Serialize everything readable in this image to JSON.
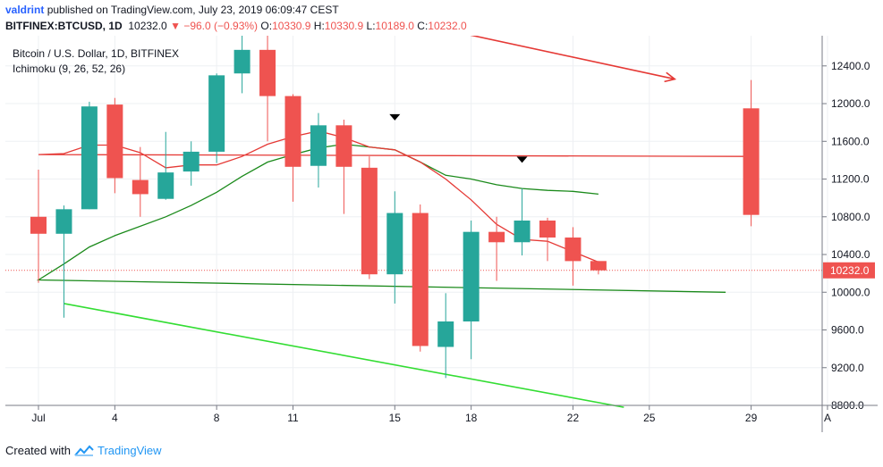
{
  "header": {
    "user": "valdrint",
    "published": "published on TradingView.com, July 23, 2019 06:09:47 CEST",
    "symbol": "BITFINEX:BTCUSD, 1D",
    "last": "10232.0",
    "change": "−96.0 (−0.93%)",
    "o_label": "O:",
    "o_val": "10330.9",
    "h_label": "H:",
    "h_val": "10330.9",
    "l_label": "L:",
    "l_val": "10189.0",
    "c_label": "C:",
    "c_val": "10232.0"
  },
  "footer": {
    "created_with": "Created with",
    "brand": "TradingView"
  },
  "colors": {
    "up": "#26a69a",
    "down": "#ef5350",
    "conversion": "#e53935",
    "base": "#1b8a1b",
    "resistance": "#e53935",
    "support": "#33dd33",
    "grid": "#eef0f3",
    "axis": "#787b86",
    "price_line": "#ef5350",
    "marker": "#000000"
  },
  "chart_data": {
    "type": "candlestick",
    "title": "Bitcoin / U.S. Dollar, 1D, BITFINEX",
    "indicator": "Ichimoku (9, 26, 52, 26)",
    "x_ticks": [
      "Jul",
      "4",
      "8",
      "11",
      "15",
      "18",
      "22",
      "25",
      "29",
      "A"
    ],
    "y_ticks": [
      "12400.0",
      "12000.0",
      "11600.0",
      "11200.0",
      "10800.0",
      "10400.0",
      "10000.0",
      "9600.0",
      "9200.0",
      "8800.0"
    ],
    "ylim": [
      8800,
      12720
    ],
    "last_price_label": "10232.0",
    "last_price": 10232,
    "candles": [
      {
        "d": "Jun 30",
        "o": 11950,
        "h": 12250,
        "l": 10700,
        "c": 10820
      },
      {
        "d": "Jul 1",
        "o": 10800,
        "h": 11300,
        "l": 10100,
        "c": 10620
      },
      {
        "d": "Jul 2",
        "o": 10620,
        "h": 10920,
        "l": 9730,
        "c": 10880
      },
      {
        "d": "Jul 3",
        "o": 10880,
        "h": 12020,
        "l": 10880,
        "c": 11970
      },
      {
        "d": "Jul 4",
        "o": 11990,
        "h": 12060,
        "l": 11050,
        "c": 11210
      },
      {
        "d": "Jul 5",
        "o": 11190,
        "h": 11540,
        "l": 10800,
        "c": 11040
      },
      {
        "d": "Jul 6",
        "o": 10990,
        "h": 11700,
        "l": 10980,
        "c": 11270
      },
      {
        "d": "Jul 7",
        "o": 11280,
        "h": 11600,
        "l": 11130,
        "c": 11490
      },
      {
        "d": "Jul 8",
        "o": 11490,
        "h": 12320,
        "l": 11370,
        "c": 12300
      },
      {
        "d": "Jul 9",
        "o": 12320,
        "h": 12800,
        "l": 12110,
        "c": 12570
      },
      {
        "d": "Jul 10",
        "o": 12570,
        "h": 13200,
        "l": 11600,
        "c": 12080
      },
      {
        "d": "Jul 11",
        "o": 12080,
        "h": 12100,
        "l": 10960,
        "c": 11330
      },
      {
        "d": "Jul 12",
        "o": 11340,
        "h": 11900,
        "l": 11110,
        "c": 11770
      },
      {
        "d": "Jul 13",
        "o": 11770,
        "h": 11830,
        "l": 10830,
        "c": 11330
      },
      {
        "d": "Jul 14",
        "o": 11320,
        "h": 11440,
        "l": 10140,
        "c": 10190
      },
      {
        "d": "Jul 15",
        "o": 10190,
        "h": 11070,
        "l": 9880,
        "c": 10840
      },
      {
        "d": "Jul 16",
        "o": 10840,
        "h": 10930,
        "l": 9370,
        "c": 9430
      },
      {
        "d": "Jul 17",
        "o": 9420,
        "h": 9990,
        "l": 9090,
        "c": 9690
      },
      {
        "d": "Jul 18",
        "o": 9690,
        "h": 10760,
        "l": 9290,
        "c": 10640
      },
      {
        "d": "Jul 19",
        "o": 10640,
        "h": 10800,
        "l": 10120,
        "c": 10530
      },
      {
        "d": "Jul 20",
        "o": 10530,
        "h": 11100,
        "l": 10390,
        "c": 10760
      },
      {
        "d": "Jul 21",
        "o": 10760,
        "h": 10790,
        "l": 10330,
        "c": 10580
      },
      {
        "d": "Jul 22",
        "o": 10580,
        "h": 10690,
        "l": 10070,
        "c": 10330
      },
      {
        "d": "Jul 23",
        "o": 10330.9,
        "h": 10330.9,
        "l": 10189,
        "c": 10232
      }
    ],
    "conversion_line": {
      "name": "Conversion Line",
      "points": [
        {
          "d": "Jun 30",
          "v": 11440
        },
        {
          "d": "Jul 1",
          "v": 11460
        },
        {
          "d": "Jul 2",
          "v": 11470
        },
        {
          "d": "Jul 3",
          "v": 11560
        },
        {
          "d": "Jul 4",
          "v": 11560
        },
        {
          "d": "Jul 5",
          "v": 11480
        },
        {
          "d": "Jul 6",
          "v": 11320
        },
        {
          "d": "Jul 7",
          "v": 11350
        },
        {
          "d": "Jul 8",
          "v": 11350
        },
        {
          "d": "Jul 9",
          "v": 11440
        },
        {
          "d": "Jul 10",
          "v": 11570
        },
        {
          "d": "Jul 11",
          "v": 11650
        },
        {
          "d": "Jul 12",
          "v": 11710
        },
        {
          "d": "Jul 13",
          "v": 11640
        },
        {
          "d": "Jul 14",
          "v": 11540
        },
        {
          "d": "Jul 15",
          "v": 11510
        },
        {
          "d": "Jul 16",
          "v": 11380
        },
        {
          "d": "Jul 17",
          "v": 11200
        },
        {
          "d": "Jul 18",
          "v": 10980
        },
        {
          "d": "Jul 19",
          "v": 10720
        },
        {
          "d": "Jul 20",
          "v": 10560
        },
        {
          "d": "Jul 21",
          "v": 10540
        },
        {
          "d": "Jul 22",
          "v": 10430
        },
        {
          "d": "Jul 23",
          "v": 10320
        }
      ]
    },
    "base_line": {
      "name": "Base Line",
      "points": [
        {
          "d": "Jun 29",
          "v": 10000
        },
        {
          "d": "Jul 1",
          "v": 10130
        },
        {
          "d": "Jul 2",
          "v": 10300
        },
        {
          "d": "Jul 3",
          "v": 10480
        },
        {
          "d": "Jul 4",
          "v": 10600
        },
        {
          "d": "Jul 6",
          "v": 10800
        },
        {
          "d": "Jul 7",
          "v": 10920
        },
        {
          "d": "Jul 8",
          "v": 11060
        },
        {
          "d": "Jul 9",
          "v": 11230
        },
        {
          "d": "Jul 10",
          "v": 11380
        },
        {
          "d": "Jul 11",
          "v": 11460
        },
        {
          "d": "Jul 12",
          "v": 11530
        },
        {
          "d": "Jul 13",
          "v": 11570
        },
        {
          "d": "Jul 14",
          "v": 11540
        },
        {
          "d": "Jul 15",
          "v": 11510
        },
        {
          "d": "Jul 16",
          "v": 11380
        },
        {
          "d": "Jul 17",
          "v": 11240
        },
        {
          "d": "Jul 18",
          "v": 11200
        },
        {
          "d": "Jul 19",
          "v": 11140
        },
        {
          "d": "Jul 20",
          "v": 11100
        },
        {
          "d": "Jul 21",
          "v": 11080
        },
        {
          "d": "Jul 22",
          "v": 11070
        },
        {
          "d": "Jul 23",
          "v": 11040
        }
      ]
    },
    "trendlines": [
      {
        "name": "resistance",
        "from": {
          "d": "Jul 15",
          "v": 12900
        },
        "to": {
          "d": "Jul 26",
          "v": 12260
        },
        "arrow": true
      },
      {
        "name": "support",
        "from": {
          "d": "Jul 2",
          "v": 9880
        },
        "to": {
          "d": "Jul 24",
          "v": 8780
        },
        "arrow": false
      }
    ],
    "markers": [
      {
        "d": "Jul 15",
        "v": 11850,
        "shape": "triangle-down"
      },
      {
        "d": "Jul 20",
        "v": 11400,
        "shape": "triangle-down"
      }
    ],
    "grid": true
  }
}
